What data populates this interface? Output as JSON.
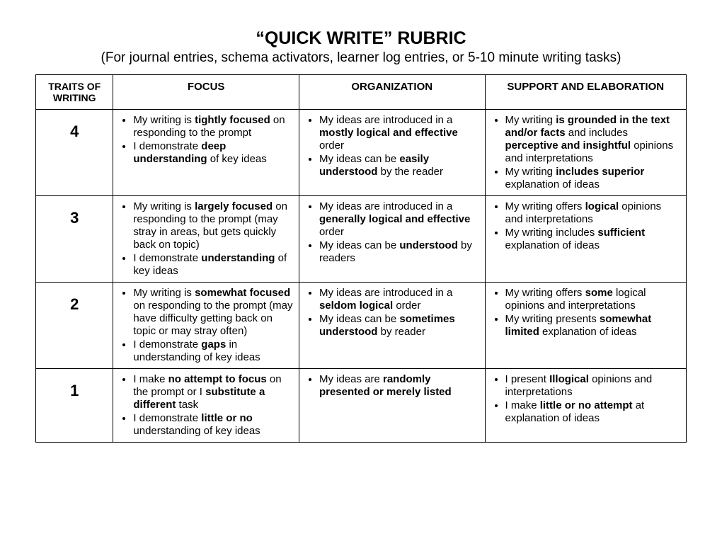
{
  "title": "“QUICK WRITE” RUBRIC",
  "subtitle": "(For journal entries, schema activators, learner log entries, or 5-10 minute writing tasks)",
  "headers": {
    "traits": "TRAITS OF WRITING",
    "focus": "FOCUS",
    "organization": "ORGANIZATION",
    "support": "SUPPORT AND ELABORATION"
  },
  "rows": [
    {
      "level": "4",
      "focus": [
        "My writing is <b>tightly focused</b> on responding to the prompt",
        "I demonstrate <b>deep understanding</b> of key ideas"
      ],
      "organization": [
        "My ideas are introduced in a <b>mostly logical and effective</b> order",
        "My ideas can be <b>easily understood</b> by the reader"
      ],
      "support": [
        "My writing <b>is grounded in the text and/or facts</b> and includes <b>perceptive and insightful</b> opinions and interpretations",
        "My writing <b>includes superior</b> explanation of ideas"
      ]
    },
    {
      "level": "3",
      "focus": [
        "My writing is <b>largely focused</b> on responding to the prompt (may stray in areas, but gets quickly back on topic)",
        "I demonstrate <b>understanding</b> of key ideas"
      ],
      "organization": [
        "My ideas are introduced in a <b>generally logical and effective</b> order",
        "My ideas can be <b>understood</b> by readers"
      ],
      "support": [
        "My writing offers <b>logical</b> opinions and interpretations",
        "My writing includes <b>sufficient</b> explanation of ideas"
      ]
    },
    {
      "level": "2",
      "focus": [
        "My writing is <b>somewhat focused</b> on responding to the prompt (may have difficulty getting back on topic or may stray often)",
        "I demonstrate <b>gaps</b> in understanding of key ideas"
      ],
      "organization": [
        "My ideas are introduced in a <b>seldom logical</b> order",
        "My ideas can be <b>sometimes understood</b> by reader"
      ],
      "support": [
        "My writing offers <b>some</b> logical opinions and interpretations",
        "My writing presents <b>somewhat limited</b> explanation of ideas"
      ]
    },
    {
      "level": "1",
      "focus": [
        "I make <b>no attempt to focus</b> on the prompt or I <b>substitute a different</b> task",
        "I demonstrate <b>little or no</b> understanding of key ideas"
      ],
      "organization": [
        "My ideas are <b>randomly presented or merely listed</b>"
      ],
      "support": [
        "I present <b>Illogical</b> opinions and interpretations",
        "I make <b>little or no attempt</b> at explanation of ideas"
      ]
    }
  ]
}
